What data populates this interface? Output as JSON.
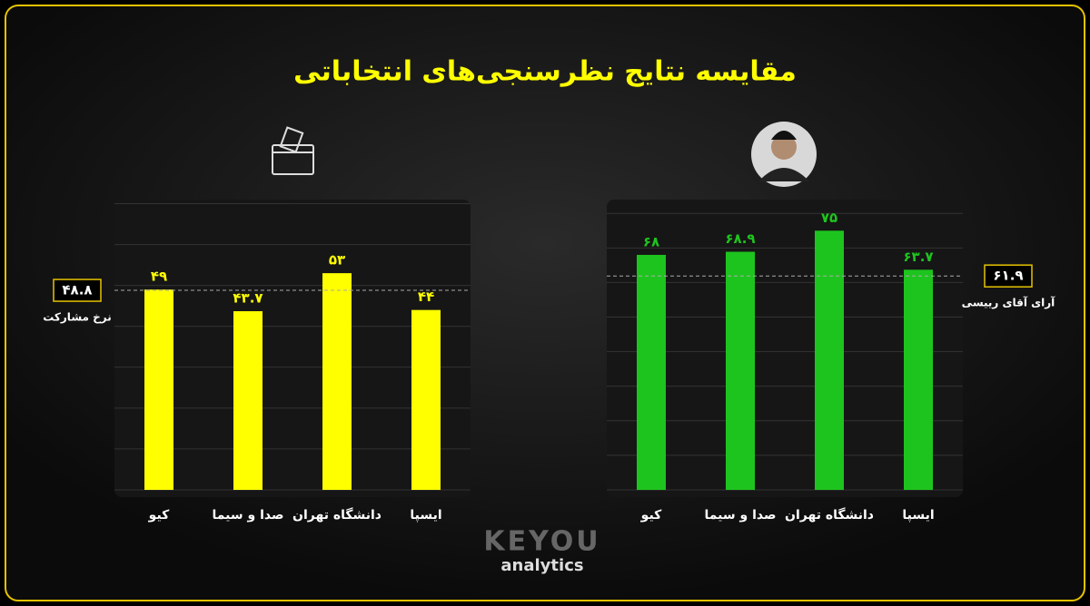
{
  "title": "مقایسه نتایج نظرسنجی‌های انتخاباتی",
  "logo": {
    "name": "KEYOU",
    "tagline": "analytics"
  },
  "chart_data": [
    {
      "type": "bar",
      "categories": [
        "کیو",
        "صدا و سیما",
        "دانشگاه تهران",
        "ایسپا"
      ],
      "values": [
        49,
        43.7,
        53,
        44
      ],
      "value_labels": [
        "۴۹",
        "۴۳.۷",
        "۵۳",
        "۴۴"
      ],
      "color": "#ffff00",
      "ylim": [
        0,
        71
      ],
      "yticks": [
        0,
        10,
        20,
        30,
        40,
        50,
        60,
        70
      ],
      "grid": true,
      "reference": {
        "value": 48.8,
        "label": "۴۸.۸",
        "name": "نرخ مشارکت"
      }
    },
    {
      "type": "bar",
      "categories": [
        "کیو",
        "صدا و سیما",
        "دانشگاه تهران",
        "ایسپا"
      ],
      "values": [
        68,
        68.9,
        75,
        63.7
      ],
      "value_labels": [
        "۶۸",
        "۶۸.۹",
        "۷۵",
        "۶۳.۷"
      ],
      "color": "#1ec41e",
      "ylim": [
        0,
        84
      ],
      "yticks": [
        0,
        10,
        20,
        30,
        40,
        50,
        60,
        70,
        80
      ],
      "grid": true,
      "reference": {
        "value": 61.9,
        "label": "۶۱.۹",
        "name": "آرای آقای رییسی"
      }
    }
  ]
}
